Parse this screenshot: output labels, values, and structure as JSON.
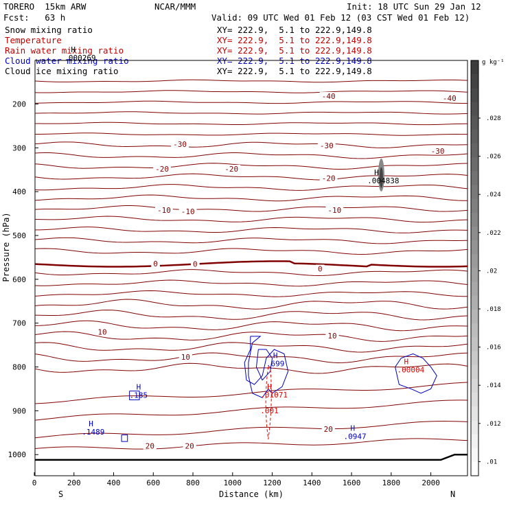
{
  "header": {
    "model": "TORERO",
    "run": "15km ARW",
    "org": "NCAR/MMM",
    "init": "Init: 18 UTC Sun 29 Jan 12",
    "fcst_label": "Fcst:",
    "fcst_value": "63 h",
    "valid": "Valid: 09 UTC Wed 01 Feb 12 (03 CST Wed 01 Feb 12)"
  },
  "fields": [
    {
      "name": "Snow mixing ratio",
      "xy": "XY= 222.9,  5.1 to 222.9,149.8",
      "color": "#000000"
    },
    {
      "name": "Temperature",
      "xy": "XY= 222.9,  5.1 to 222.9,149.8",
      "color": "#c00000"
    },
    {
      "name": "Rain water mixing ratio",
      "xy": "XY= 222.9,  5.1 to 222.9,149.8",
      "color": "#c00000"
    },
    {
      "name": "Cloud water mixing ratio",
      "xy": "XY= 222.9,  5.1 to 222.9,149.8",
      "color": "#0000c0"
    },
    {
      "name": "Cloud ice mixing ratio",
      "xy": "XY= 222.9,  5.1 to 222.9,149.8",
      "color": "#000000"
    }
  ],
  "colors": {
    "temperature": "#800000",
    "freezing_line": "#800000",
    "rain": "#e00000",
    "cloud_water": "#0000c0",
    "cloud_ice": "#000000",
    "terrain": "#000000"
  },
  "chart_data": {
    "type": "cross-section",
    "xlabel": "Distance (km)",
    "ylabel": "Pressure (hPa)",
    "x_ticks": [
      0,
      200,
      400,
      600,
      800,
      1000,
      1200,
      1400,
      1600,
      1800,
      2000
    ],
    "xlim": [
      0,
      2180
    ],
    "y_ticks": [
      200,
      300,
      400,
      500,
      600,
      700,
      800,
      900,
      1000
    ],
    "ylim": [
      1030,
      100
    ],
    "left_end": "S",
    "right_end": "N",
    "temperature_labels": [
      {
        "text": "-40",
        "x": 1450,
        "p": 182
      },
      {
        "text": "-40",
        "x": 2060,
        "p": 187
      },
      {
        "text": "-30",
        "x": 700,
        "p": 292
      },
      {
        "text": "-30",
        "x": 1440,
        "p": 295
      },
      {
        "text": "-30",
        "x": 2000,
        "p": 307
      },
      {
        "text": "-20",
        "x": 610,
        "p": 348
      },
      {
        "text": "-20",
        "x": 960,
        "p": 348
      },
      {
        "text": "-20",
        "x": 1450,
        "p": 369
      },
      {
        "text": "-10",
        "x": 620,
        "p": 442
      },
      {
        "text": "-10",
        "x": 740,
        "p": 445
      },
      {
        "text": "-10",
        "x": 1480,
        "p": 442
      },
      {
        "text": "0",
        "x": 600,
        "p": 564
      },
      {
        "text": "0",
        "x": 800,
        "p": 565
      },
      {
        "text": "0",
        "x": 1430,
        "p": 576
      },
      {
        "text": "10",
        "x": 320,
        "p": 720
      },
      {
        "text": "10",
        "x": 740,
        "p": 777
      },
      {
        "text": "10",
        "x": 1480,
        "p": 729
      },
      {
        "text": "20",
        "x": 560,
        "p": 980
      },
      {
        "text": "20",
        "x": 760,
        "p": 980
      },
      {
        "text": "20",
        "x": 1460,
        "p": 942
      }
    ],
    "extrema": [
      {
        "field": "Cloud ice mixing ratio",
        "label": "H",
        "value": ".004838",
        "x": 1680,
        "p": 368
      },
      {
        "field": "Cloud water mixing ratio",
        "label": "H",
        "value": ".699",
        "x": 1170,
        "p": 786
      },
      {
        "field": "Cloud water mixing ratio",
        "label": "H",
        "value": ".185",
        "x": 480,
        "p": 858
      },
      {
        "field": "Cloud water mixing ratio",
        "label": "H",
        "value": ".1489",
        "x": 240,
        "p": 942
      },
      {
        "field": "Cloud water mixing ratio",
        "label": "H",
        "value": ".0947",
        "x": 1560,
        "p": 952
      },
      {
        "field": "Rain water mixing ratio",
        "label": "H",
        "value": ".01071",
        "x": 1140,
        "p": 857
      },
      {
        "field": "Rain water mixing ratio",
        "label": "",
        "value": ".001",
        "x": 1140,
        "p": 893
      },
      {
        "field": "Rain water mixing ratio",
        "label": "H",
        "value": ".00004",
        "x": 1830,
        "p": 800
      },
      {
        "field": "Snow mixing ratio",
        "label": "H",
        "value": ".000269",
        "x": 150,
        "p": 88
      }
    ],
    "colorbar": {
      "unit": "g kg⁻¹",
      "ticks": [
        ".028",
        ".026",
        ".024",
        ".022",
        ".02",
        ".018",
        ".016",
        ".014",
        ".012",
        ".01"
      ]
    }
  }
}
